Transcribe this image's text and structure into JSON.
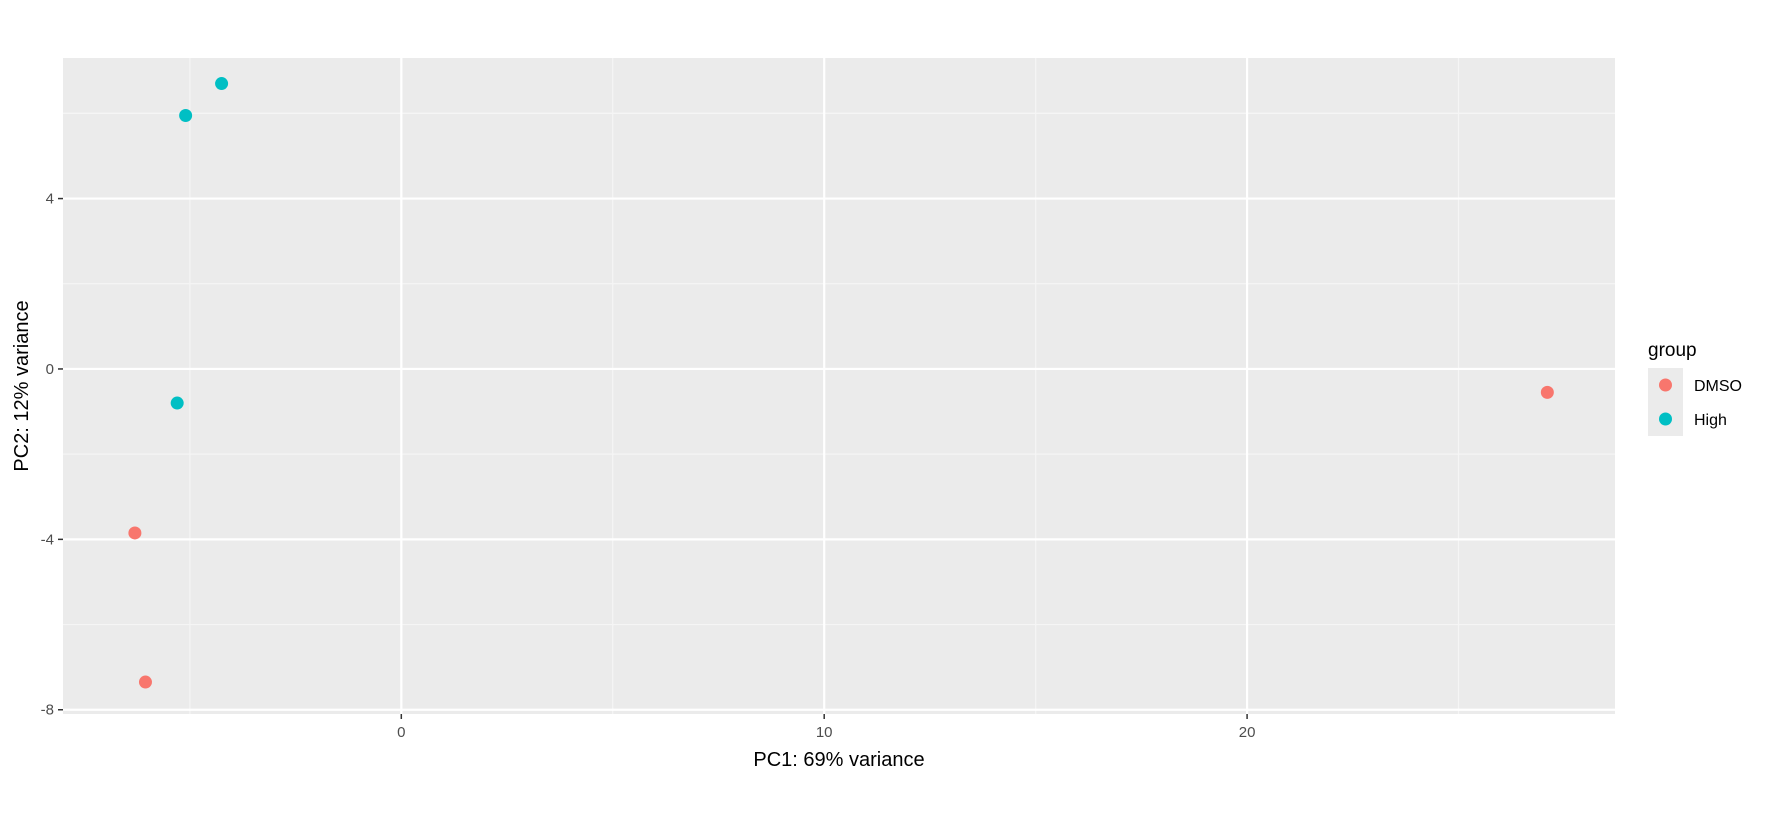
{
  "chart_data": {
    "type": "scatter",
    "title": "",
    "xlabel": "PC1: 69% variance",
    "ylabel": "PC2: 12% variance",
    "xlim": [
      -8,
      28.7
    ],
    "ylim": [
      -8.1,
      7.3
    ],
    "x_ticks": [
      0,
      10,
      20
    ],
    "y_ticks": [
      -8,
      -4,
      0,
      4
    ],
    "grid": true,
    "legend": {
      "title": "group",
      "position": "right",
      "entries": [
        "DMSO",
        "High"
      ]
    },
    "series": [
      {
        "name": "DMSO",
        "color": "#F8766D",
        "points": [
          {
            "x": -6.3,
            "y": -3.85
          },
          {
            "x": -6.05,
            "y": -7.35
          },
          {
            "x": 27.1,
            "y": -0.55
          }
        ]
      },
      {
        "name": "High",
        "color": "#00BFC4",
        "points": [
          {
            "x": -5.1,
            "y": 5.95
          },
          {
            "x": -4.25,
            "y": 6.7
          },
          {
            "x": -5.3,
            "y": -0.8
          }
        ]
      }
    ]
  }
}
